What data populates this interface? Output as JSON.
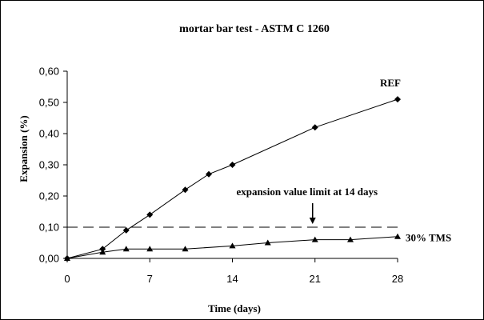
{
  "chart_data": {
    "type": "line",
    "title": "mortar bar test - ASTM C 1260",
    "xlabel": "Time (days)",
    "ylabel": "Expansion (%)",
    "xlim": [
      0,
      28
    ],
    "ylim": [
      0,
      0.6
    ],
    "x_ticks": [
      "0",
      "7",
      "14",
      "21",
      "28"
    ],
    "y_ticks": [
      "0,00",
      "0,10",
      "0,20",
      "0,30",
      "0,40",
      "0,50",
      "0,60"
    ],
    "grid": false,
    "legend": "none (direct labels)",
    "series": [
      {
        "name": "REF",
        "marker": "diamond",
        "x": [
          0,
          3,
          5,
          7,
          10,
          12,
          14,
          21,
          28
        ],
        "y": [
          0.0,
          0.03,
          0.09,
          0.14,
          0.22,
          0.27,
          0.3,
          0.42,
          0.51
        ]
      },
      {
        "name": "30% TMS",
        "marker": "triangle",
        "x": [
          0,
          3,
          5,
          7,
          10,
          14,
          17,
          21,
          24,
          28
        ],
        "y": [
          0.0,
          0.02,
          0.03,
          0.03,
          0.03,
          0.04,
          0.05,
          0.06,
          0.06,
          0.07
        ]
      }
    ],
    "reference_line": {
      "y": 0.1,
      "style": "dashed",
      "label": "expansion value limit at 14 days",
      "arrow_at_x": 21
    }
  }
}
